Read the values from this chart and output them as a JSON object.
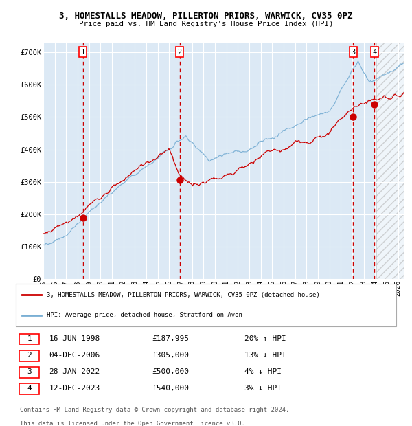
{
  "title": "3, HOMESTALLS MEADOW, PILLERTON PRIORS, WARWICK, CV35 0PZ",
  "subtitle": "Price paid vs. HM Land Registry's House Price Index (HPI)",
  "xlim_start": 1995.0,
  "xlim_end": 2026.5,
  "ylim": [
    0,
    730000
  ],
  "yticks": [
    0,
    100000,
    200000,
    300000,
    400000,
    500000,
    600000,
    700000
  ],
  "ytick_labels": [
    "£0",
    "£100K",
    "£200K",
    "£300K",
    "£400K",
    "£500K",
    "£600K",
    "£700K"
  ],
  "xticks": [
    1995,
    1996,
    1997,
    1998,
    1999,
    2000,
    2001,
    2002,
    2003,
    2004,
    2005,
    2006,
    2007,
    2008,
    2009,
    2010,
    2011,
    2012,
    2013,
    2014,
    2015,
    2016,
    2017,
    2018,
    2019,
    2020,
    2021,
    2022,
    2023,
    2024,
    2025,
    2026
  ],
  "bg_color": "#dce9f5",
  "hatch_region_start": 2024.08,
  "transactions": [
    {
      "num": 1,
      "date": "16-JUN-1998",
      "year": 1998.46,
      "price": 187995
    },
    {
      "num": 2,
      "date": "04-DEC-2006",
      "year": 2006.92,
      "price": 305000
    },
    {
      "num": 3,
      "date": "28-JAN-2022",
      "year": 2022.08,
      "price": 500000
    },
    {
      "num": 4,
      "date": "12-DEC-2023",
      "year": 2023.95,
      "price": 540000
    }
  ],
  "legend_line1": "3, HOMESTALLS MEADOW, PILLERTON PRIORS, WARWICK, CV35 0PZ (detached house)",
  "legend_line2": "HPI: Average price, detached house, Stratford-on-Avon",
  "footer1": "Contains HM Land Registry data © Crown copyright and database right 2024.",
  "footer2": "This data is licensed under the Open Government Licence v3.0.",
  "red_line_color": "#cc0000",
  "blue_line_color": "#7aafd4",
  "point_color": "#cc0000",
  "dashed_line_color": "#cc0000",
  "grid_color": "#ffffff",
  "table_rows": [
    [
      "1",
      "16-JUN-1998",
      "£187,995",
      "20% ↑ HPI"
    ],
    [
      "2",
      "04-DEC-2006",
      "£305,000",
      "13% ↓ HPI"
    ],
    [
      "3",
      "28-JAN-2022",
      "£500,000",
      "4% ↓ HPI"
    ],
    [
      "4",
      "12-DEC-2023",
      "£540,000",
      "3% ↓ HPI"
    ]
  ]
}
